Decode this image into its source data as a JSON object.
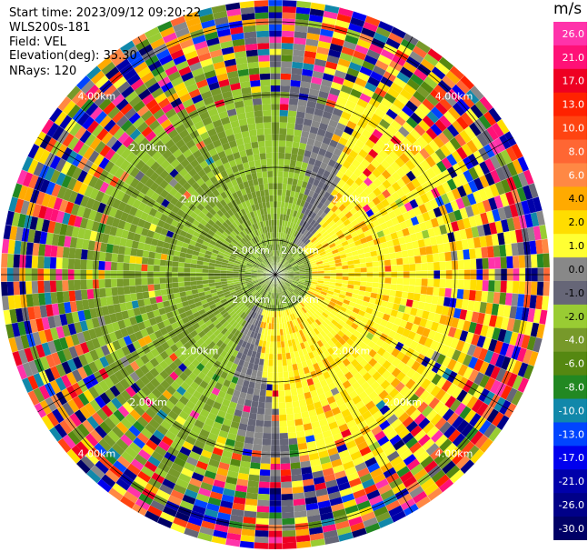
{
  "header": {
    "start_time_label": "Start time:",
    "start_time": "2023/09/12 09:20:22",
    "instrument": "WLS200s-181",
    "field_label": "Field:",
    "field": "VEL",
    "elevation_label": "Elevation(deg):",
    "elevation": "35.30",
    "nrays_label": "NRays:",
    "nrays": "120"
  },
  "chart_data": {
    "type": "heatmap",
    "projection": "polar PPI",
    "field": "VEL",
    "unit": "m/s",
    "n_rays": 120,
    "range_ring_labels": [
      "2.00km",
      "2.00km",
      "2.00km",
      "4.00km"
    ],
    "colorbar": {
      "unit": "m/s",
      "ticks": [
        "26.0",
        "21.0",
        "17.0",
        "13.0",
        "10.0",
        "8.0",
        "6.0",
        "4.0",
        "2.0",
        "1.0",
        "0.0",
        "-1.0",
        "-2.0",
        "-4.0",
        "-6.0",
        "-8.0",
        "-10.0",
        "-13.0",
        "-17.0",
        "-21.0",
        "-26.0",
        "-30.0"
      ],
      "colors": [
        "#ff33aa",
        "#ff1177",
        "#ee0022",
        "#ff2200",
        "#ff4411",
        "#ff6633",
        "#ff8844",
        "#ffaa00",
        "#ffdd00",
        "#ffff33",
        "#888888",
        "#666677",
        "#99cc33",
        "#77992a",
        "#558811",
        "#228822",
        "#1188aa",
        "#0044ff",
        "#0000ee",
        "#0000aa",
        "#000088",
        "#000066"
      ]
    }
  }
}
